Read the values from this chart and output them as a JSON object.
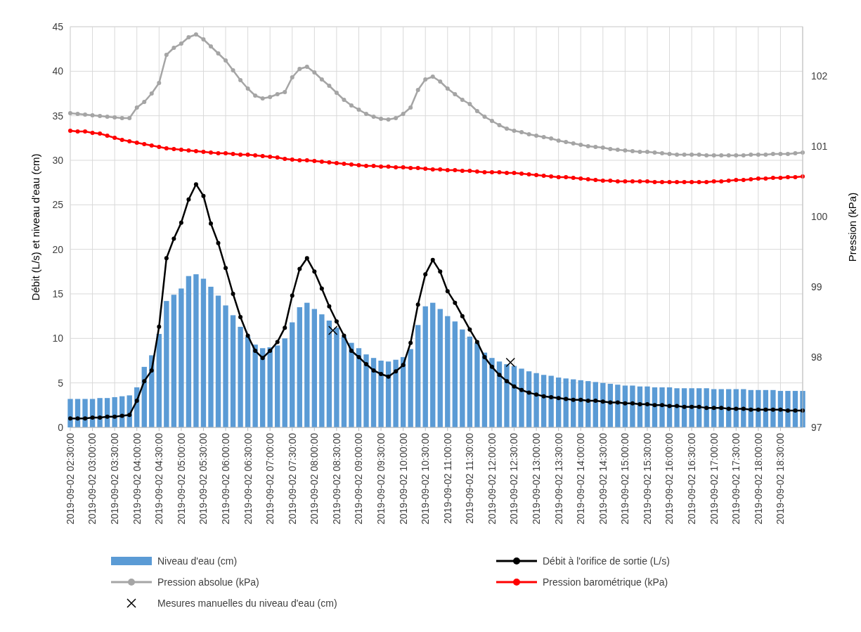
{
  "chart_data": {
    "type": "bar",
    "ylabel": "Débit (L/s) et niveau d'eau (cm)",
    "y2label": "Pression (kPa)",
    "x": [
      "2019-09-02T02:30",
      "2019-09-02T02:40",
      "2019-09-02T02:50",
      "2019-09-02T03:00",
      "2019-09-02T03:10",
      "2019-09-02T03:20",
      "2019-09-02T03:30",
      "2019-09-02T03:40",
      "2019-09-02T03:50",
      "2019-09-02T04:00",
      "2019-09-02T04:10",
      "2019-09-02T04:20",
      "2019-09-02T04:30",
      "2019-09-02T04:40",
      "2019-09-02T04:50",
      "2019-09-02T05:00",
      "2019-09-02T05:10",
      "2019-09-02T05:20",
      "2019-09-02T05:30",
      "2019-09-02T05:40",
      "2019-09-02T05:50",
      "2019-09-02T06:00",
      "2019-09-02T06:10",
      "2019-09-02T06:20",
      "2019-09-02T06:30",
      "2019-09-02T06:40",
      "2019-09-02T06:50",
      "2019-09-02T07:00",
      "2019-09-02T07:10",
      "2019-09-02T07:20",
      "2019-09-02T07:30",
      "2019-09-02T07:40",
      "2019-09-02T07:50",
      "2019-09-02T08:00",
      "2019-09-02T08:10",
      "2019-09-02T08:20",
      "2019-09-02T08:30",
      "2019-09-02T08:40",
      "2019-09-02T08:50",
      "2019-09-02T09:00",
      "2019-09-02T09:10",
      "2019-09-02T09:20",
      "2019-09-02T09:30",
      "2019-09-02T09:40",
      "2019-09-02T09:50",
      "2019-09-02T10:00",
      "2019-09-02T10:10",
      "2019-09-02T10:20",
      "2019-09-02T10:30",
      "2019-09-02T10:40",
      "2019-09-02T10:50",
      "2019-09-02T11:00",
      "2019-09-02T11:10",
      "2019-09-02T11:20",
      "2019-09-02T11:30",
      "2019-09-02T11:40",
      "2019-09-02T11:50",
      "2019-09-02T12:00",
      "2019-09-02T12:10",
      "2019-09-02T12:20",
      "2019-09-02T12:30",
      "2019-09-02T12:40",
      "2019-09-02T12:50",
      "2019-09-02T13:00",
      "2019-09-02T13:10",
      "2019-09-02T13:20",
      "2019-09-02T13:30",
      "2019-09-02T13:40",
      "2019-09-02T13:50",
      "2019-09-02T14:00",
      "2019-09-02T14:10",
      "2019-09-02T14:20",
      "2019-09-02T14:30",
      "2019-09-02T14:40",
      "2019-09-02T14:50",
      "2019-09-02T15:00",
      "2019-09-02T15:10",
      "2019-09-02T15:20",
      "2019-09-02T15:30",
      "2019-09-02T15:40",
      "2019-09-02T15:50",
      "2019-09-02T16:00",
      "2019-09-02T16:10",
      "2019-09-02T16:20",
      "2019-09-02T16:30",
      "2019-09-02T16:40",
      "2019-09-02T16:50",
      "2019-09-02T17:00",
      "2019-09-02T17:10",
      "2019-09-02T17:20",
      "2019-09-02T17:30",
      "2019-09-02T17:40",
      "2019-09-02T17:50",
      "2019-09-02T18:00",
      "2019-09-02T18:10",
      "2019-09-02T18:20",
      "2019-09-02T18:30",
      "2019-09-02T18:40",
      "2019-09-02T18:50",
      "2019-09-02T19:00"
    ],
    "series": [
      {
        "name": "Niveau d'eau (cm)",
        "color": "#5b9bd5",
        "values": [
          3.2,
          3.2,
          3.2,
          3.2,
          3.3,
          3.3,
          3.4,
          3.5,
          3.6,
          4.5,
          6.8,
          8.1,
          10.5,
          14.2,
          14.9,
          15.6,
          17.0,
          17.2,
          16.7,
          15.8,
          14.8,
          13.7,
          12.6,
          11.3,
          10.2,
          9.3,
          8.9,
          9.0,
          9.2,
          10.0,
          11.8,
          13.5,
          14.0,
          13.3,
          12.7,
          12.0,
          11.2,
          10.2,
          9.5,
          8.9,
          8.2,
          7.8,
          7.5,
          7.4,
          7.6,
          7.9,
          8.8,
          11.5,
          13.6,
          14.0,
          13.3,
          12.5,
          11.9,
          11.0,
          10.2,
          9.5,
          8.4,
          7.8,
          7.4,
          7.1,
          6.9,
          6.6,
          6.3,
          6.1,
          5.9,
          5.8,
          5.6,
          5.5,
          5.4,
          5.3,
          5.2,
          5.1,
          5.0,
          4.9,
          4.8,
          4.7,
          4.7,
          4.6,
          4.6,
          4.5,
          4.5,
          4.5,
          4.4,
          4.4,
          4.4,
          4.4,
          4.4,
          4.3,
          4.3,
          4.3,
          4.3,
          4.3,
          4.2,
          4.2,
          4.2,
          4.2,
          4.1,
          4.1,
          4.1,
          4.1
        ]
      },
      {
        "name": "Débit à l'orifice de sortie (L/s)",
        "type": "line",
        "color": "#000000",
        "marker": "circle",
        "values": [
          1.0,
          1.0,
          1.0,
          1.1,
          1.1,
          1.2,
          1.2,
          1.3,
          1.4,
          3.0,
          5.2,
          6.4,
          11.3,
          19.0,
          21.2,
          23.0,
          25.6,
          27.3,
          26.0,
          22.9,
          20.7,
          17.9,
          15.0,
          12.4,
          10.3,
          8.6,
          7.8,
          8.6,
          9.6,
          11.2,
          14.8,
          17.8,
          19.0,
          17.5,
          15.6,
          13.6,
          11.9,
          10.3,
          8.6,
          7.9,
          7.1,
          6.4,
          6.0,
          5.7,
          6.3,
          7.0,
          9.5,
          13.8,
          17.2,
          18.8,
          17.5,
          15.3,
          14.0,
          12.5,
          11.0,
          9.6,
          7.9,
          6.8,
          5.9,
          5.2,
          4.6,
          4.2,
          3.9,
          3.7,
          3.5,
          3.4,
          3.3,
          3.2,
          3.1,
          3.1,
          3.0,
          3.0,
          2.9,
          2.8,
          2.8,
          2.7,
          2.7,
          2.6,
          2.6,
          2.5,
          2.5,
          2.4,
          2.4,
          2.3,
          2.3,
          2.3,
          2.2,
          2.2,
          2.2,
          2.1,
          2.1,
          2.1,
          2.0,
          2.0,
          2.0,
          2.0,
          2.0,
          1.9,
          1.9,
          1.9
        ]
      },
      {
        "name": "Pression absolue (kPa)",
        "type": "line",
        "axis": "y2",
        "color": "#a5a5a5",
        "marker": "circle",
        "values": [
          101.47,
          101.46,
          101.45,
          101.44,
          101.43,
          101.42,
          101.41,
          101.4,
          101.4,
          101.55,
          101.63,
          101.75,
          101.9,
          102.3,
          102.4,
          102.46,
          102.55,
          102.59,
          102.52,
          102.42,
          102.32,
          102.22,
          102.08,
          101.94,
          101.82,
          101.72,
          101.68,
          101.7,
          101.74,
          101.77,
          101.98,
          102.1,
          102.13,
          102.05,
          101.95,
          101.86,
          101.76,
          101.66,
          101.58,
          101.52,
          101.46,
          101.42,
          101.39,
          101.38,
          101.4,
          101.46,
          101.55,
          101.8,
          101.95,
          101.99,
          101.92,
          101.82,
          101.74,
          101.66,
          101.6,
          101.5,
          101.42,
          101.36,
          101.3,
          101.25,
          101.22,
          101.2,
          101.17,
          101.15,
          101.13,
          101.11,
          101.08,
          101.06,
          101.04,
          101.02,
          101.0,
          100.99,
          100.98,
          100.96,
          100.95,
          100.94,
          100.93,
          100.92,
          100.92,
          100.91,
          100.9,
          100.89,
          100.88,
          100.88,
          100.88,
          100.88,
          100.87,
          100.87,
          100.87,
          100.87,
          100.87,
          100.87,
          100.88,
          100.88,
          100.88,
          100.89,
          100.89,
          100.89,
          100.9,
          100.91
        ]
      },
      {
        "name": "Pression barométrique (kPa)",
        "type": "line",
        "axis": "y2",
        "color": "#ff0000",
        "marker": "circle",
        "values": [
          101.22,
          101.21,
          101.21,
          101.19,
          101.18,
          101.15,
          101.12,
          101.09,
          101.07,
          101.05,
          101.03,
          101.01,
          100.99,
          100.97,
          100.96,
          100.95,
          100.94,
          100.93,
          100.92,
          100.91,
          100.9,
          100.9,
          100.89,
          100.88,
          100.88,
          100.87,
          100.86,
          100.85,
          100.84,
          100.82,
          100.81,
          100.8,
          100.8,
          100.79,
          100.78,
          100.77,
          100.76,
          100.75,
          100.74,
          100.73,
          100.72,
          100.72,
          100.71,
          100.71,
          100.7,
          100.7,
          100.69,
          100.69,
          100.68,
          100.67,
          100.67,
          100.66,
          100.66,
          100.65,
          100.65,
          100.64,
          100.63,
          100.63,
          100.63,
          100.62,
          100.62,
          100.61,
          100.6,
          100.59,
          100.58,
          100.57,
          100.56,
          100.56,
          100.55,
          100.54,
          100.53,
          100.52,
          100.51,
          100.51,
          100.5,
          100.5,
          100.5,
          100.5,
          100.5,
          100.49,
          100.49,
          100.49,
          100.49,
          100.49,
          100.49,
          100.49,
          100.49,
          100.5,
          100.5,
          100.51,
          100.52,
          100.52,
          100.53,
          100.54,
          100.54,
          100.55,
          100.55,
          100.56,
          100.56,
          100.57
        ]
      },
      {
        "name": "Mesures manuelles du niveau d'eau (cm)",
        "type": "scatter",
        "color": "#000000",
        "marker": "cross",
        "x": [
          "2019-09-02T08:25",
          "2019-09-02T12:25"
        ],
        "values": [
          10.9,
          7.3
        ]
      }
    ],
    "xlim": [
      "2019-09-02T02:30",
      "2019-09-02T19:00"
    ],
    "xticks": [
      {
        "value": "2019-09-02T02:30",
        "label": "2019-09-02 02:30:00"
      },
      {
        "value": "2019-09-02T03:00",
        "label": "2019-09-02 03:00:00"
      },
      {
        "value": "2019-09-02T03:30",
        "label": "2019-09-02 03:30:00"
      },
      {
        "value": "2019-09-02T04:00",
        "label": "2019-09-02 04:00:00"
      },
      {
        "value": "2019-09-02T04:30",
        "label": "2019-09-02 04:30:00"
      },
      {
        "value": "2019-09-02T05:00",
        "label": "2019-09-02 05:00:00"
      },
      {
        "value": "2019-09-02T05:30",
        "label": "2019-09-02 05:30:00"
      },
      {
        "value": "2019-09-02T06:00",
        "label": "2019-09-02 06:00:00"
      },
      {
        "value": "2019-09-02T06:30",
        "label": "2019-09-02 06:30:00"
      },
      {
        "value": "2019-09-02T07:00",
        "label": "2019-09-02 07:00:00"
      },
      {
        "value": "2019-09-02T07:30",
        "label": "2019-09-02 07:30:00"
      },
      {
        "value": "2019-09-02T08:00",
        "label": "2019-09-02 08:00:00"
      },
      {
        "value": "2019-09-02T08:30",
        "label": "2019-09-02 08:30:00"
      },
      {
        "value": "2019-09-02T09:00",
        "label": "2019-09-02 09:00:00"
      },
      {
        "value": "2019-09-02T09:30",
        "label": "2019-09-02 09:30:00"
      },
      {
        "value": "2019-09-02T10:00",
        "label": "2019-09-02 10:00:00"
      },
      {
        "value": "2019-09-02T10:30",
        "label": "2019-09-02 10:30:00"
      },
      {
        "value": "2019-09-02T11:00",
        "label": "2019-09-02 11:00:00"
      },
      {
        "value": "2019-09-02T11:30",
        "label": "2019-09-02 11:30:00"
      },
      {
        "value": "2019-09-02T12:00",
        "label": "2019-09-02 12:00:00"
      },
      {
        "value": "2019-09-02T12:30",
        "label": "2019-09-02 12:30:00"
      },
      {
        "value": "2019-09-02T13:00",
        "label": "2019-09-02 13:00:00"
      },
      {
        "value": "2019-09-02T13:30",
        "label": "2019-09-02 13:30:00"
      },
      {
        "value": "2019-09-02T14:00",
        "label": "2019-09-02 14:00:00"
      },
      {
        "value": "2019-09-02T14:30",
        "label": "2019-09-02 14:30:00"
      },
      {
        "value": "2019-09-02T15:00",
        "label": "2019-09-02 15:00:00"
      },
      {
        "value": "2019-09-02T15:30",
        "label": "2019-09-02 15:30:00"
      },
      {
        "value": "2019-09-02T16:00",
        "label": "2019-09-02 16:00:00"
      },
      {
        "value": "2019-09-02T16:30",
        "label": "2019-09-02 16:30:00"
      },
      {
        "value": "2019-09-02T17:00",
        "label": "2019-09-02 17:00:00"
      },
      {
        "value": "2019-09-02T17:30",
        "label": "2019-09-02 17:30:00"
      },
      {
        "value": "2019-09-02T18:00",
        "label": "2019-09-02 18:00:00"
      },
      {
        "value": "2019-09-02T18:30",
        "label": "2019-09-02 18:30:00"
      }
    ],
    "ylim": [
      0,
      45
    ],
    "yticks": [
      0,
      5,
      10,
      15,
      20,
      25,
      30,
      35,
      40,
      45
    ],
    "y2lim": [
      97,
      102.7
    ],
    "y2ticks": [
      97,
      98,
      99,
      100,
      101,
      102
    ],
    "grid": true,
    "legend": "bottom"
  }
}
